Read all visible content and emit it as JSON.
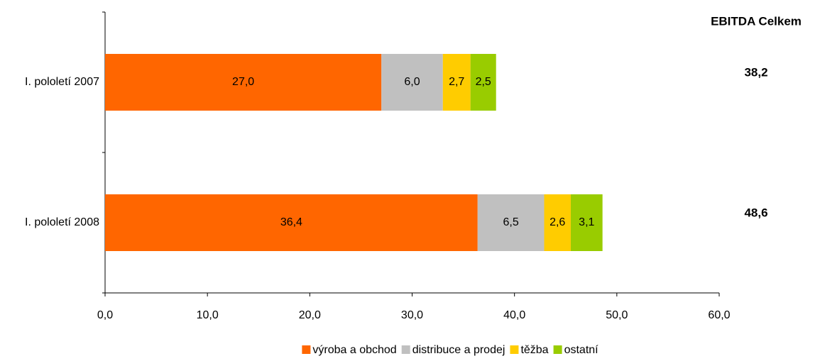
{
  "chart_data": {
    "type": "stacked_barh",
    "categories": [
      "I. pololetí 2007",
      "I. pololetí 2008"
    ],
    "series": [
      {
        "name": "výroba a obchod",
        "color": "#ff6600",
        "values": [
          27.0,
          36.4
        ],
        "value_labels": [
          "27,0",
          "36,4"
        ]
      },
      {
        "name": "distribuce a prodej",
        "color": "#c0c0c0",
        "values": [
          6.0,
          6.5
        ],
        "value_labels": [
          "6,0",
          "6,5"
        ]
      },
      {
        "name": "těžba",
        "color": "#ffcc00",
        "values": [
          2.7,
          2.6
        ],
        "value_labels": [
          "2,7",
          "2,6"
        ]
      },
      {
        "name": "ostatní",
        "color": "#99cc00",
        "values": [
          2.5,
          3.1
        ],
        "value_labels": [
          "2,5",
          "3,1"
        ]
      }
    ],
    "totals_title": "EBITDA Celkem",
    "totals": [
      38.2,
      48.6
    ],
    "total_labels": [
      "38,2",
      "48,6"
    ],
    "xlim": [
      0,
      60
    ],
    "xticks": [
      {
        "value": 0,
        "label": "0,0"
      },
      {
        "value": 10,
        "label": "10,0"
      },
      {
        "value": 20,
        "label": "20,0"
      },
      {
        "value": 30,
        "label": "30,0"
      },
      {
        "value": 40,
        "label": "40,0"
      },
      {
        "value": 50,
        "label": "50,0"
      },
      {
        "value": 60,
        "label": "60,0"
      }
    ],
    "legend": "bottom"
  }
}
